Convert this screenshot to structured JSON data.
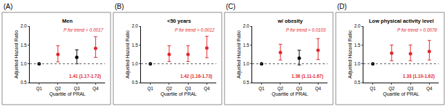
{
  "chart_data": [
    {
      "type": "scatter",
      "panel": "(A)",
      "title": "Men",
      "x_label": "Quartile of PRAL",
      "y_label": "Adjusted Hazard Ratio",
      "categories": [
        "Q1",
        "Q2",
        "Q3",
        "Q4"
      ],
      "values": [
        1.0,
        1.25,
        1.17,
        1.41
      ],
      "error_low": [
        null,
        1.05,
        1.0,
        1.17
      ],
      "error_high": [
        null,
        1.48,
        1.37,
        1.72
      ],
      "colors": [
        "#000000",
        "#e3262b",
        "#000000",
        "#e3262b"
      ],
      "marker": "circle",
      "reference_line": 1.0,
      "p_trend": "P for trend = 0.0017",
      "hr_label": "1.41 (1.17-1.72)",
      "ylim": [
        0.5,
        2.0
      ],
      "yticks": [
        0.5,
        {
          "value": 1,
          "label": "1.0"
        },
        1.5,
        {
          "value": 2,
          "label": "2.0"
        }
      ],
      "grid": false
    },
    {
      "type": "scatter",
      "panel": "(B)",
      "title": "<50 years",
      "x_label": "Quartile of PRAL",
      "y_label": "Adjusted Hazard Ratio",
      "categories": [
        "Q1",
        "Q2",
        "Q3",
        "Q4"
      ],
      "values": [
        1.0,
        1.25,
        1.25,
        1.42
      ],
      "error_low": [
        null,
        1.06,
        1.06,
        1.16
      ],
      "error_high": [
        null,
        1.48,
        1.48,
        1.73
      ],
      "colors": [
        "#000000",
        "#e3262b",
        "#e3262b",
        "#e3262b"
      ],
      "marker": "circle",
      "reference_line": 1.0,
      "p_trend": "P for trend = 0.0012",
      "hr_label": "1.42 (1.16-1.73)",
      "ylim": [
        0.5,
        2.0
      ],
      "yticks": [
        0.5,
        {
          "value": 1,
          "label": "1.0"
        },
        1.5,
        {
          "value": 2,
          "label": "2.0"
        }
      ],
      "grid": false
    },
    {
      "type": "scatter",
      "panel": "(C)",
      "title": "w/ obesity",
      "x_label": "Quartile of PRAL",
      "y_label": "Adjusted Hazard Ratio",
      "categories": [
        "Q1",
        "Q2",
        "Q3",
        "Q4"
      ],
      "values": [
        1.0,
        1.3,
        1.15,
        1.36
      ],
      "error_low": [
        null,
        1.1,
        0.97,
        1.11
      ],
      "error_high": [
        null,
        1.52,
        1.36,
        1.67
      ],
      "colors": [
        "#000000",
        "#e3262b",
        "#000000",
        "#e3262b"
      ],
      "marker": "circle",
      "reference_line": 1.0,
      "p_trend": "P for trend = 0.0103",
      "hr_label": "1.36 (1.11-1.67)",
      "ylim": [
        0.5,
        2.0
      ],
      "yticks": [
        0.5,
        {
          "value": 1,
          "label": "1.0"
        },
        1.5,
        {
          "value": 2,
          "label": "2.0"
        }
      ],
      "grid": false
    },
    {
      "type": "scatter",
      "panel": "(D)",
      "title": "Low physical activity level",
      "x_label": "Quartile of PRAL",
      "y_label": "Adjusted Hazard Ratio",
      "categories": [
        "Q1",
        "Q2",
        "Q3",
        "Q4"
      ],
      "values": [
        1.0,
        1.28,
        1.27,
        1.33
      ],
      "error_low": [
        null,
        1.08,
        1.08,
        1.1
      ],
      "error_high": [
        null,
        1.5,
        1.5,
        1.62
      ],
      "colors": [
        "#000000",
        "#e3262b",
        "#e3262b",
        "#e3262b"
      ],
      "marker": "circle",
      "reference_line": 1.0,
      "p_trend": "P for trend = 0.0078",
      "hr_label": "1.33 (1.10-1.62)",
      "ylim": [
        0.5,
        2.0
      ],
      "yticks": [
        0.5,
        {
          "value": 1,
          "label": "1.0"
        },
        1.5,
        {
          "value": 2,
          "label": "2.0"
        }
      ],
      "grid": false
    }
  ]
}
